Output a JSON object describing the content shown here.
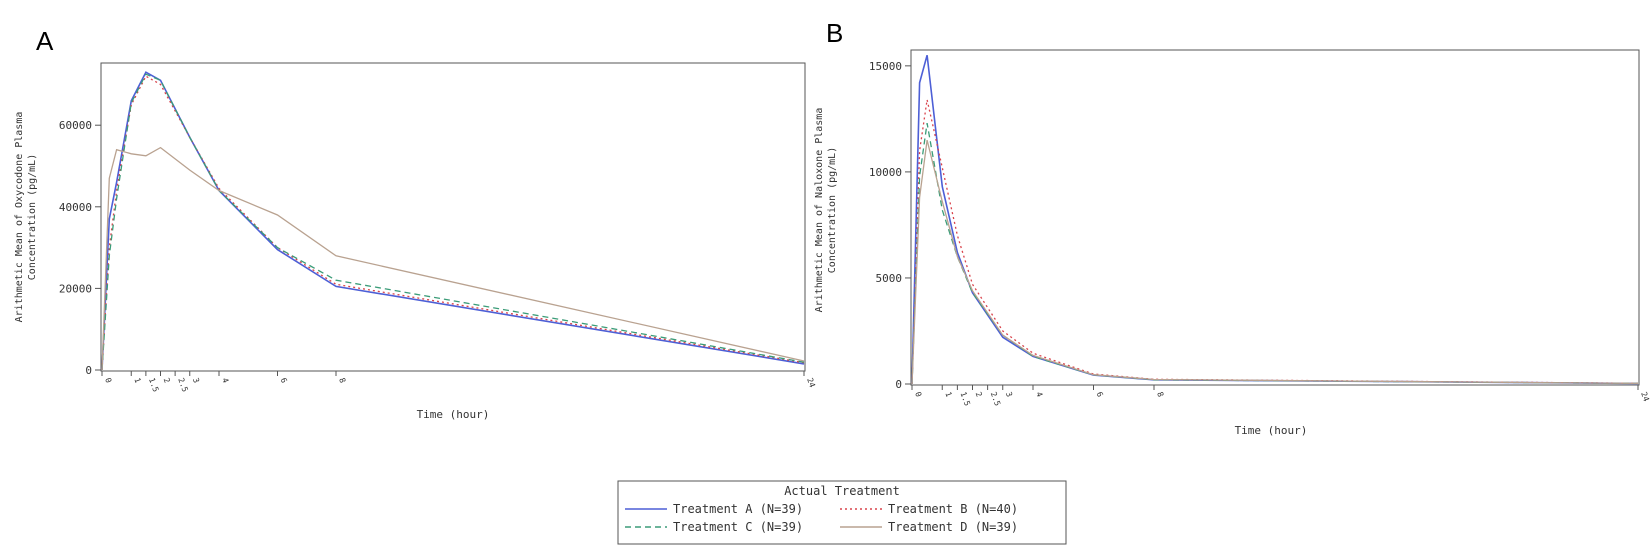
{
  "legend": {
    "title": "Actual Treatment",
    "entries": [
      {
        "label": "Treatment A (N=39)",
        "color": "#4d5fd6",
        "dash": "solid"
      },
      {
        "label": "Treatment B (N=40)",
        "color": "#d9434b",
        "dash": "dotted"
      },
      {
        "label": "Treatment C (N=39)",
        "color": "#3b9c78",
        "dash": "dashed"
      },
      {
        "label": "Treatment D (N=39)",
        "color": "#b9a290",
        "dash": "solid"
      }
    ]
  },
  "chart_data": [
    {
      "panel": "A",
      "type": "line",
      "title": "",
      "xlabel": "Time (hour)",
      "ylabel": [
        "Arithmetic Mean of Oxycodone Plasma",
        "Concentration (pg/mL)"
      ],
      "xlim": [
        0,
        24
      ],
      "ylim": [
        0,
        75000
      ],
      "yticks": [
        0,
        20000,
        40000,
        60000
      ],
      "xtick_labels": [
        "0",
        "1",
        "1.5",
        "2",
        "2.5",
        "3",
        "4",
        "6",
        "8",
        "24"
      ],
      "xtick_values": [
        0,
        1,
        1.5,
        2,
        2.5,
        3,
        4,
        6,
        8,
        24
      ],
      "series": [
        {
          "name": "Treatment A (N=39)",
          "x": [
            0,
            0.25,
            0.5,
            1,
            1.5,
            2,
            3,
            4,
            6,
            8,
            24
          ],
          "y": [
            0,
            37000,
            46000,
            66000,
            73000,
            71000,
            57000,
            44000,
            29500,
            20500,
            1500
          ]
        },
        {
          "name": "Treatment B (N=40)",
          "x": [
            0,
            0.25,
            0.5,
            1,
            1.5,
            2,
            3,
            4,
            6,
            8,
            24
          ],
          "y": [
            0,
            30000,
            44000,
            65000,
            72000,
            70000,
            57000,
            44500,
            30000,
            21000,
            1800
          ]
        },
        {
          "name": "Treatment C (N=39)",
          "x": [
            0,
            0.25,
            0.5,
            1,
            1.5,
            2,
            3,
            4,
            6,
            8,
            24
          ],
          "y": [
            0,
            28000,
            42000,
            65500,
            72500,
            71000,
            57000,
            44000,
            30000,
            22000,
            1900
          ]
        },
        {
          "name": "Treatment D (N=39)",
          "x": [
            0,
            0.25,
            0.5,
            1,
            1.5,
            2,
            3,
            4,
            6,
            8,
            24
          ],
          "y": [
            0,
            47000,
            54000,
            53000,
            52500,
            54500,
            49000,
            44000,
            38000,
            28000,
            2200
          ]
        }
      ]
    },
    {
      "panel": "B",
      "type": "line",
      "title": "",
      "xlabel": "Time (hour)",
      "ylabel": [
        "Arithmetic Mean of Naloxone Plasma",
        "Concentration (pg/mL)"
      ],
      "xlim": [
        0,
        24
      ],
      "ylim": [
        0,
        15700
      ],
      "yticks": [
        0,
        5000,
        10000,
        15000
      ],
      "xtick_labels": [
        "0",
        "1",
        "1.5",
        "2",
        "2.5",
        "3",
        "4",
        "6",
        "8",
        "24"
      ],
      "xtick_values": [
        0,
        1,
        1.5,
        2,
        2.5,
        3,
        4,
        6,
        8,
        24
      ],
      "series": [
        {
          "name": "Treatment A (N=39)",
          "x": [
            0,
            0.25,
            0.5,
            1,
            1.5,
            2,
            3,
            4,
            6,
            8,
            24
          ],
          "y": [
            0,
            14200,
            15500,
            9300,
            6200,
            4300,
            2200,
            1300,
            420,
            200,
            30
          ]
        },
        {
          "name": "Treatment B (N=40)",
          "x": [
            0,
            0.25,
            0.5,
            1,
            1.5,
            2,
            3,
            4,
            6,
            8,
            24
          ],
          "y": [
            0,
            11000,
            13400,
            10200,
            7000,
            4700,
            2500,
            1450,
            470,
            220,
            35
          ]
        },
        {
          "name": "Treatment C (N=39)",
          "x": [
            0,
            0.25,
            0.5,
            1,
            1.5,
            2,
            3,
            4,
            6,
            8,
            24
          ],
          "y": [
            0,
            9800,
            12300,
            8200,
            6000,
            4300,
            2300,
            1300,
            430,
            200,
            30
          ]
        },
        {
          "name": "Treatment D (N=39)",
          "x": [
            0,
            0.25,
            0.5,
            1,
            1.5,
            2,
            3,
            4,
            6,
            8,
            24
          ],
          "y": [
            0,
            8800,
            11500,
            8600,
            6000,
            4400,
            2300,
            1350,
            440,
            210,
            30
          ]
        }
      ]
    }
  ]
}
